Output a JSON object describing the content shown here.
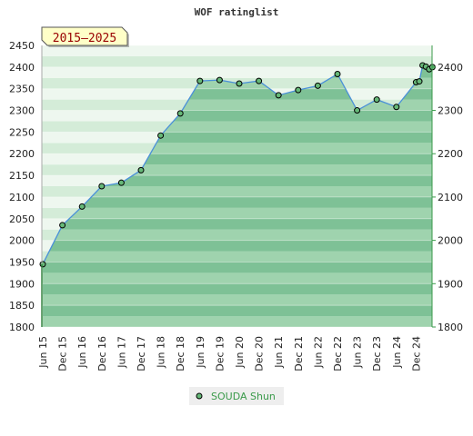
{
  "chart_data": {
    "type": "area",
    "title": "WOF ratinglist",
    "period_badge": "2015–2025",
    "xlabel": "",
    "ylabel": "",
    "ylim": [
      1800,
      2450
    ],
    "y_ticks_left": [
      1800,
      1850,
      1900,
      1950,
      2000,
      2050,
      2100,
      2150,
      2200,
      2250,
      2300,
      2350,
      2400,
      2450
    ],
    "y_ticks_right": [
      1800,
      1900,
      2000,
      2100,
      2200,
      2300,
      2400
    ],
    "x_ticks": [
      "Jun 15",
      "Dec 15",
      "Jun 16",
      "Dec 16",
      "Jun 17",
      "Dec 17",
      "Jun 18",
      "Dec 18",
      "Jun 19",
      "Dec 19",
      "Jun 20",
      "Dec 20",
      "Jun 21",
      "Dec 21",
      "Jun 22",
      "Dec 22",
      "Jun 23",
      "Dec 23",
      "Jun 24",
      "Dec 24"
    ],
    "grid": true,
    "legend_position": "bottom-center",
    "colors": {
      "fill_dark": "#7ec196",
      "fill_light": "#9fd3ae",
      "band_light": "#d4ecd8",
      "band_pale": "#eef7ef",
      "line": "#4a90d9",
      "marker": "#66b878",
      "axis_right": "#3a9a4a",
      "badge_bg": "#ffffc8",
      "badge_text": "#990000",
      "legend_text": "#3a9a4a"
    },
    "series": [
      {
        "name": "SOUDA Shun",
        "points": [
          {
            "x": "Jun 15",
            "y": 1945
          },
          {
            "x": "Dec 15",
            "y": 2035
          },
          {
            "x": "Jun 16",
            "y": 2078
          },
          {
            "x": "Dec 16",
            "y": 2125
          },
          {
            "x": "Jun 17",
            "y": 2133
          },
          {
            "x": "Dec 17",
            "y": 2162
          },
          {
            "x": "Jun 18",
            "y": 2242
          },
          {
            "x": "Dec 18",
            "y": 2293
          },
          {
            "x": "Jun 19",
            "y": 2368
          },
          {
            "x": "Dec 19",
            "y": 2370
          },
          {
            "x": "Jun 20",
            "y": 2362
          },
          {
            "x": "Dec 20",
            "y": 2368
          },
          {
            "x": "Jun 21",
            "y": 2335
          },
          {
            "x": "Dec 21",
            "y": 2347
          },
          {
            "x": "Jun 22",
            "y": 2357
          },
          {
            "x": "Dec 22",
            "y": 2384
          },
          {
            "x": "Jun 23",
            "y": 2300
          },
          {
            "x": "Dec 23",
            "y": 2325
          },
          {
            "x": "Jun 24",
            "y": 2308
          },
          {
            "x": "Dec 24",
            "y": 2365
          },
          {
            "x": "Jan 25",
            "y": 2367
          },
          {
            "x": "Feb 25",
            "y": 2404
          },
          {
            "x": "Mar 25",
            "y": 2401
          },
          {
            "x": "Apr 25",
            "y": 2395
          },
          {
            "x": "May 25",
            "y": 2400
          }
        ]
      }
    ]
  }
}
